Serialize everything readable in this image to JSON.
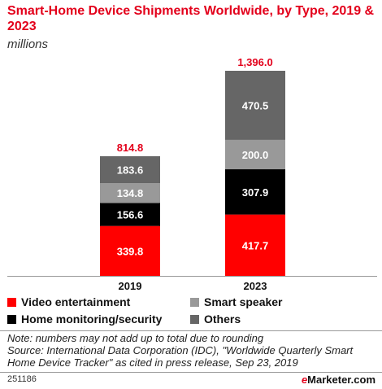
{
  "title": "Smart-Home Device Shipments Worldwide, by Type, 2019 & 2023",
  "subtitle": "millions",
  "chart_data": {
    "type": "bar",
    "stacked": true,
    "categories": [
      "2019",
      "2023"
    ],
    "series": [
      {
        "name": "Video entertainment",
        "color": "#ff0000",
        "values": [
          339.8,
          417.7
        ]
      },
      {
        "name": "Home monitoring/security",
        "color": "#000000",
        "values": [
          156.6,
          307.9
        ]
      },
      {
        "name": "Smart speaker",
        "color": "#999999",
        "values": [
          134.8,
          200.0
        ]
      },
      {
        "name": "Others",
        "color": "#666666",
        "values": [
          183.6,
          470.5
        ]
      }
    ],
    "totals": [
      814.8,
      1396.0
    ],
    "value_labels": [
      [
        "339.8",
        "156.6",
        "134.8",
        "183.6"
      ],
      [
        "417.7",
        "307.9",
        "200.0",
        "470.5"
      ]
    ],
    "total_labels": [
      "814.8",
      "1,396.0"
    ],
    "ylim": [
      0,
      1396.0
    ]
  },
  "legend": {
    "video": "Video entertainment",
    "home": "Home monitoring/security",
    "speaker": "Smart speaker",
    "others": "Others"
  },
  "colors": {
    "accent": "#e3001b"
  },
  "note": "Note: numbers may not add up to total due to rounding",
  "source": "Source: International Data Corporation (IDC), \"Worldwide Quarterly Smart Home Device Tracker\" as cited in press release, Sep 23, 2019",
  "chart_id": "251186",
  "brand": {
    "e": "e",
    "rest": "Marketer",
    "suffix": ".com"
  }
}
